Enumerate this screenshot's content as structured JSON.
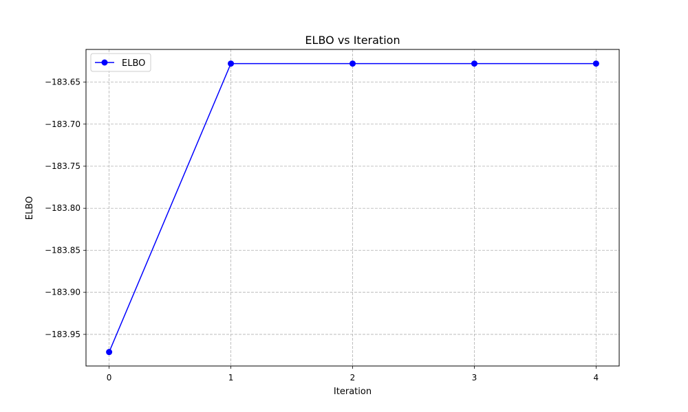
{
  "chart_data": {
    "type": "line",
    "title": "ELBO vs Iteration",
    "xlabel": "Iteration",
    "ylabel": "ELBO",
    "x": [
      0,
      1,
      2,
      3,
      4
    ],
    "series": [
      {
        "name": "ELBO",
        "values": [
          -183.971,
          -183.628,
          -183.628,
          -183.628,
          -183.628
        ],
        "color": "#0000ff",
        "marker": "circle"
      }
    ],
    "xticks": [
      0,
      1,
      2,
      3,
      4
    ],
    "xtick_labels": [
      "0",
      "1",
      "2",
      "3",
      "4"
    ],
    "yticks": [
      -183.95,
      -183.9,
      -183.85,
      -183.8,
      -183.75,
      -183.7,
      -183.65
    ],
    "ytick_labels": [
      "−183.95",
      "−183.90",
      "−183.85",
      "−183.80",
      "−183.75",
      "−183.70",
      "−183.65"
    ],
    "xlim": [
      -0.19,
      4.19
    ],
    "ylim": [
      -183.9876,
      -183.6112
    ],
    "grid": true,
    "grid_style": "dashed",
    "grid_color": "#b0b0b0",
    "legend_position": "top-left"
  }
}
